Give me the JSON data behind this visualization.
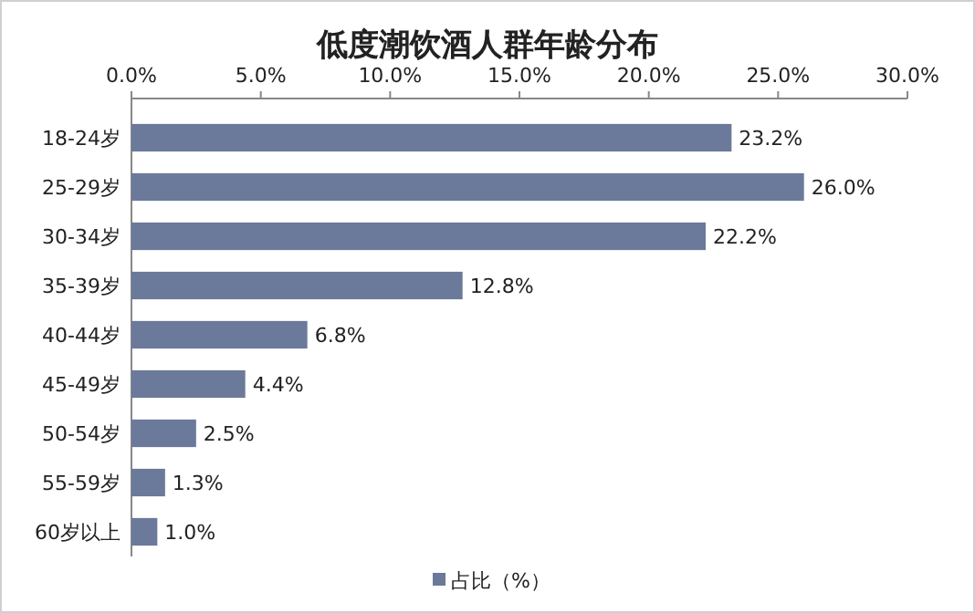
{
  "chart_data": {
    "type": "bar",
    "orientation": "horizontal",
    "title": "低度潮饮酒人群年龄分布",
    "categories": [
      "18-24岁",
      "25-29岁",
      "30-34岁",
      "35-39岁",
      "40-44岁",
      "45-49岁",
      "50-54岁",
      "55-59岁",
      "60岁以上"
    ],
    "series": [
      {
        "name": "占比（%）",
        "color": "#6b7a9a",
        "values": [
          23.2,
          26.0,
          22.2,
          12.8,
          6.8,
          4.4,
          2.5,
          1.3,
          1.0
        ],
        "value_labels": [
          "23.2%",
          "26.0%",
          "22.2%",
          "12.8%",
          "6.8%",
          "4.4%",
          "2.5%",
          "1.3%",
          "1.0%"
        ]
      }
    ],
    "xlim": [
      0,
      30
    ],
    "xticks": [
      {
        "value": 0,
        "label": "0.0%"
      },
      {
        "value": 5,
        "label": "5.0%"
      },
      {
        "value": 10,
        "label": "10.0%"
      },
      {
        "value": 15,
        "label": "15.0%"
      },
      {
        "value": 20,
        "label": "20.0%"
      },
      {
        "value": 25,
        "label": "25.0%"
      },
      {
        "value": 30,
        "label": "30.0%"
      }
    ],
    "legend": "bottom"
  }
}
